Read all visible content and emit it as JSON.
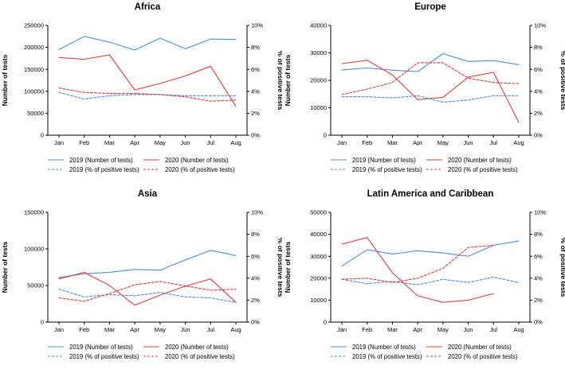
{
  "colors": {
    "y2019": "#4a8fdc",
    "y2020": "#e23a3a",
    "axis": "#000000"
  },
  "legend": {
    "tests_2019": "2019 (Number of tests)",
    "tests_2020": "2020 (Number of tests)",
    "pos_2019": "2019 (% of positive tests)",
    "pos_2020": "2020 (% of positive tests)"
  },
  "chart_data": [
    {
      "type": "line",
      "title": "Africa",
      "categories": [
        "Jan",
        "Feb",
        "Mar",
        "Apr",
        "May",
        "Jun",
        "Jul",
        "Aug"
      ],
      "ylabel": "Number of tests",
      "y2label": "% of positive tests",
      "ylim": [
        0,
        250000
      ],
      "yticks": [
        0,
        50000,
        100000,
        150000,
        200000,
        250000
      ],
      "ytick_labels": [
        "0",
        "50000",
        "100000",
        "150000",
        "200000",
        "250000"
      ],
      "y2lim": [
        0,
        10
      ],
      "y2ticks": [
        0,
        2,
        4,
        6,
        8,
        10
      ],
      "y2tick_labels": [
        "0%",
        "2%",
        "4%",
        "6%",
        "8%",
        "10%"
      ],
      "series": [
        {
          "name": "2019 (Number of tests)",
          "axis": "left",
          "values": [
            195000,
            225000,
            212000,
            194000,
            221000,
            197000,
            219000,
            218000
          ]
        },
        {
          "name": "2020 (Number of tests)",
          "axis": "left",
          "values": [
            177000,
            173000,
            183000,
            103000,
            118000,
            135000,
            157000,
            66000
          ]
        },
        {
          "name": "2019 (% of positive tests)",
          "axis": "right",
          "values": [
            3.9,
            3.3,
            3.6,
            3.7,
            3.7,
            3.6,
            3.6,
            3.6
          ]
        },
        {
          "name": "2020 (% of positive tests)",
          "axis": "right",
          "values": [
            4.3,
            3.9,
            3.8,
            3.8,
            3.7,
            3.5,
            3.1,
            3.2
          ]
        }
      ]
    },
    {
      "type": "line",
      "title": "Europe",
      "categories": [
        "Jan",
        "Feb",
        "Mar",
        "Apr",
        "May",
        "Jun",
        "Jul",
        "Aug"
      ],
      "ylabel": "Number of tests",
      "y2label": "% of positive tests",
      "ylim": [
        0,
        40000
      ],
      "yticks": [
        0,
        10000,
        20000,
        30000,
        40000
      ],
      "ytick_labels": [
        "0",
        "10000",
        "20000",
        "30000",
        "40000"
      ],
      "y2lim": [
        0,
        10
      ],
      "y2ticks": [
        0,
        2,
        4,
        6,
        8,
        10
      ],
      "y2tick_labels": [
        "0%",
        "2%",
        "4%",
        "6%",
        "8%",
        "10%"
      ],
      "series": [
        {
          "name": "2019 (Number of tests)",
          "axis": "left",
          "values": [
            23800,
            24500,
            23700,
            23200,
            29700,
            26900,
            27200,
            25700
          ]
        },
        {
          "name": "2020 (Number of tests)",
          "axis": "left",
          "values": [
            26100,
            27300,
            22000,
            13000,
            13800,
            21200,
            22900,
            4700
          ]
        },
        {
          "name": "2019 (% of positive tests)",
          "axis": "right",
          "values": [
            3.5,
            3.5,
            3.4,
            3.6,
            3.0,
            3.2,
            3.6,
            3.6
          ]
        },
        {
          "name": "2020 (% of positive tests)",
          "axis": "right",
          "values": [
            3.7,
            4.2,
            4.8,
            6.6,
            6.6,
            5.2,
            4.8,
            4.7
          ]
        }
      ]
    },
    {
      "type": "line",
      "title": "Asia",
      "categories": [
        "Jan",
        "Feb",
        "Mar",
        "Apr",
        "May",
        "Jun",
        "Jul",
        "Aug"
      ],
      "ylabel": "Number of tests",
      "y2label": "% of positive tests",
      "ylim": [
        0,
        150000
      ],
      "yticks": [
        0,
        50000,
        100000,
        150000
      ],
      "ytick_labels": [
        "0",
        "50000",
        "100000",
        "150000"
      ],
      "y2lim": [
        0,
        10
      ],
      "y2ticks": [
        0,
        2,
        4,
        6,
        8,
        10
      ],
      "y2tick_labels": [
        "0%",
        "2%",
        "4%",
        "6%",
        "8%",
        "10%"
      ],
      "series": [
        {
          "name": "2019 (Number of tests)",
          "axis": "left",
          "values": [
            61000,
            66000,
            68000,
            72000,
            71000,
            85000,
            98000,
            91000
          ]
        },
        {
          "name": "2020 (Number of tests)",
          "axis": "left",
          "values": [
            59000,
            68000,
            50000,
            23000,
            37000,
            49000,
            59000,
            27000
          ]
        },
        {
          "name": "2019 (% of positive tests)",
          "axis": "right",
          "values": [
            3.0,
            2.3,
            2.5,
            2.4,
            2.7,
            2.3,
            2.2,
            1.8
          ]
        },
        {
          "name": "2020 (% of positive tests)",
          "axis": "right",
          "values": [
            2.2,
            1.9,
            2.6,
            3.4,
            3.7,
            3.3,
            2.9,
            3.0
          ]
        }
      ]
    },
    {
      "type": "line",
      "title": "Latin America and Caribbean",
      "categories": [
        "Jan",
        "Feb",
        "Mar",
        "Apr",
        "May",
        "Jun",
        "Jul",
        "Aug"
      ],
      "ylabel": "Number of tests",
      "y2label": "% of positive tests",
      "ylim": [
        0,
        50000
      ],
      "yticks": [
        0,
        10000,
        20000,
        30000,
        40000,
        50000
      ],
      "ytick_labels": [
        "0",
        "10000",
        "20000",
        "30000",
        "40000",
        "50000"
      ],
      "y2lim": [
        0,
        10
      ],
      "y2ticks": [
        0,
        2,
        4,
        6,
        8,
        10
      ],
      "y2tick_labels": [
        "0%",
        "2%",
        "4%",
        "6%",
        "8%",
        "10%"
      ],
      "series": [
        {
          "name": "2019 (Number of tests)",
          "axis": "left",
          "values": [
            25500,
            33000,
            31000,
            32500,
            31500,
            30000,
            35000,
            37000
          ]
        },
        {
          "name": "2020 (Number of tests)",
          "axis": "left",
          "values": [
            35500,
            38500,
            22500,
            12000,
            9000,
            10000,
            13000,
            null
          ]
        },
        {
          "name": "2019 (% of positive tests)",
          "axis": "right",
          "values": [
            3.9,
            3.5,
            3.7,
            3.4,
            3.9,
            3.6,
            4.1,
            3.6
          ]
        },
        {
          "name": "2020 (% of positive tests)",
          "axis": "right",
          "values": [
            3.9,
            4.0,
            3.6,
            4.0,
            4.9,
            6.8,
            7.0,
            null
          ]
        }
      ]
    }
  ]
}
